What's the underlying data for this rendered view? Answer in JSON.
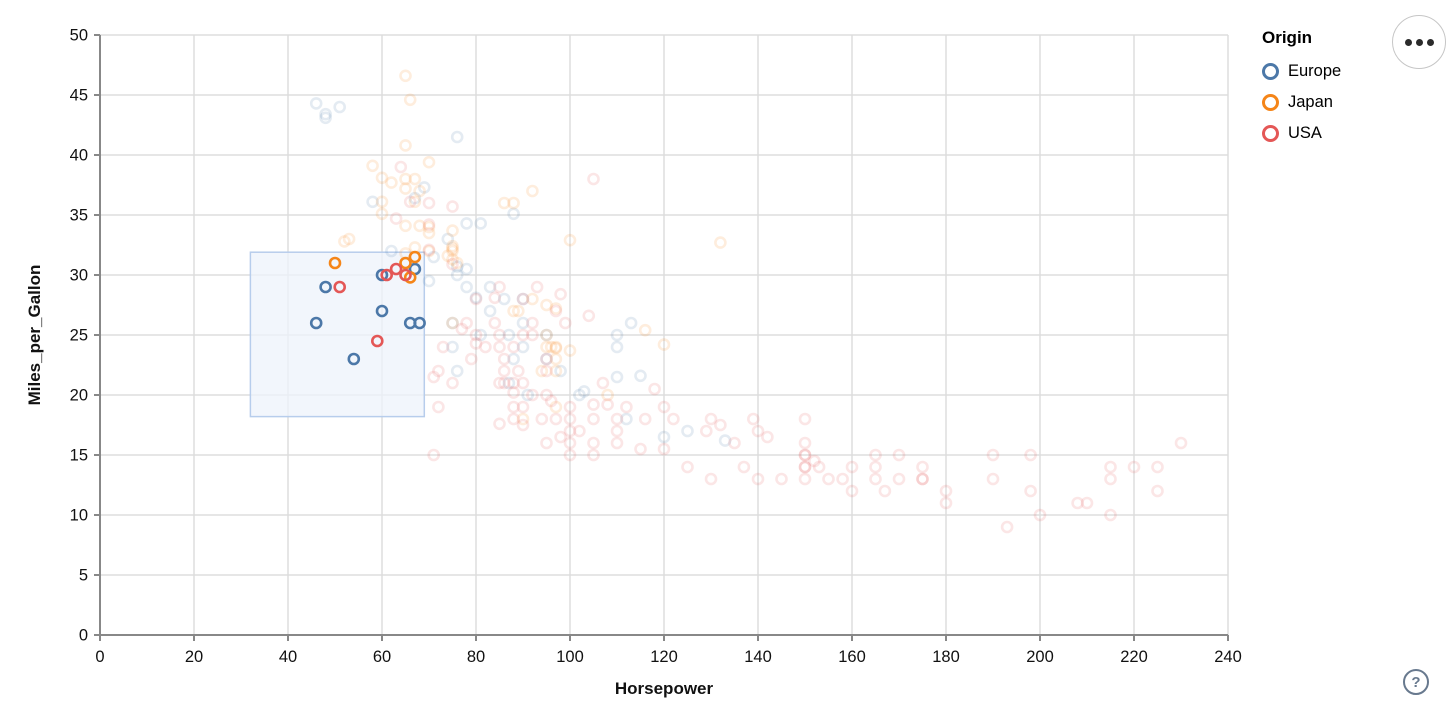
{
  "legend": {
    "title": "Origin",
    "items": [
      {
        "label": "Europe",
        "color": "#4c78a8"
      },
      {
        "label": "Japan",
        "color": "#f58518"
      },
      {
        "label": "USA",
        "color": "#e45756"
      }
    ]
  },
  "controls": {
    "menu_icon": "ellipsis-icon",
    "help_label": "?"
  },
  "chart_data": {
    "type": "scatter",
    "title": "",
    "xlabel": "Horsepower",
    "ylabel": "Miles_per_Gallon",
    "xlim": [
      0,
      240
    ],
    "ylim": [
      0,
      50
    ],
    "x_ticks": [
      0,
      20,
      40,
      60,
      80,
      100,
      120,
      140,
      160,
      180,
      200,
      220,
      240
    ],
    "y_ticks": [
      0,
      5,
      10,
      15,
      20,
      25,
      30,
      35,
      40,
      45,
      50
    ],
    "grid": true,
    "legend_title": "Origin",
    "legend_position": "top-right",
    "point_style": "open-circle",
    "unselected_opacity": 0.15,
    "brush": {
      "x": [
        32,
        69
      ],
      "y": [
        18.2,
        31.9
      ],
      "fill": "#eef3fb",
      "fill_opacity": 0.75,
      "stroke": "#b7cdec"
    },
    "series": [
      {
        "name": "Europe",
        "color": "#4c78a8",
        "selected": [
          [
            46,
            26
          ],
          [
            48,
            29
          ],
          [
            54,
            23
          ],
          [
            60,
            27
          ],
          [
            60,
            30
          ],
          [
            66,
            26
          ],
          [
            68,
            26
          ],
          [
            67,
            30.5
          ]
        ],
        "points": [
          [
            46,
            44.3
          ],
          [
            48,
            43.4
          ],
          [
            48,
            43.1
          ],
          [
            51,
            44
          ],
          [
            76,
            41.5
          ],
          [
            69,
            37.3
          ],
          [
            67,
            36.4
          ],
          [
            58,
            36.1
          ],
          [
            78,
            34.3
          ],
          [
            88,
            35.1
          ],
          [
            74,
            33
          ],
          [
            81,
            34.3
          ],
          [
            62,
            32
          ],
          [
            71,
            31.5
          ],
          [
            76,
            30.7
          ],
          [
            80,
            28.1
          ],
          [
            78,
            30.5
          ],
          [
            70,
            29.5
          ],
          [
            78,
            29
          ],
          [
            83,
            29
          ],
          [
            86,
            28
          ],
          [
            81,
            25
          ],
          [
            83,
            27
          ],
          [
            75,
            24
          ],
          [
            75,
            26
          ],
          [
            76,
            30
          ],
          [
            90,
            28
          ],
          [
            87,
            25
          ],
          [
            90,
            24
          ],
          [
            95,
            25
          ],
          [
            113,
            26
          ],
          [
            90,
            26
          ],
          [
            91,
            20
          ],
          [
            112,
            18
          ],
          [
            76,
            22
          ],
          [
            87,
            21
          ],
          [
            95,
            23
          ],
          [
            88,
            23
          ],
          [
            98,
            22
          ],
          [
            110,
            25
          ],
          [
            110,
            24
          ],
          [
            110,
            21.5
          ],
          [
            103,
            20.3
          ],
          [
            102,
            20
          ],
          [
            115,
            21.6
          ],
          [
            125,
            17
          ],
          [
            133,
            16.2
          ],
          [
            120,
            16.5
          ]
        ]
      },
      {
        "name": "Japan",
        "color": "#f58518",
        "selected": [
          [
            50,
            31
          ],
          [
            65,
            31
          ],
          [
            67,
            31.5
          ],
          [
            66,
            29.8
          ]
        ],
        "points": [
          [
            65,
            46.6
          ],
          [
            66,
            44.6
          ],
          [
            65,
            40.8
          ],
          [
            70,
            39.4
          ],
          [
            58,
            39.1
          ],
          [
            60,
            38.1
          ],
          [
            65,
            37.2
          ],
          [
            62,
            37.7
          ],
          [
            92,
            37
          ],
          [
            68,
            37
          ],
          [
            67,
            38
          ],
          [
            60,
            36.1
          ],
          [
            67,
            36.1
          ],
          [
            88,
            36
          ],
          [
            86,
            36
          ],
          [
            60,
            35.1
          ],
          [
            75,
            32.2
          ],
          [
            75,
            32.4
          ],
          [
            65,
            34.1
          ],
          [
            68,
            34.1
          ],
          [
            75,
            33.7
          ],
          [
            70,
            33.5
          ],
          [
            53,
            33
          ],
          [
            100,
            32.9
          ],
          [
            132,
            32.7
          ],
          [
            52,
            32.8
          ],
          [
            70,
            32
          ],
          [
            75,
            32
          ],
          [
            67,
            32.3
          ],
          [
            74,
            31.6
          ],
          [
            65,
            31.8
          ],
          [
            75,
            31.3
          ],
          [
            70,
            34
          ],
          [
            65,
            38
          ],
          [
            76,
            31
          ],
          [
            95,
            24
          ],
          [
            88,
            27
          ],
          [
            89,
            27
          ],
          [
            95,
            25
          ],
          [
            96,
            24
          ],
          [
            92,
            28
          ],
          [
            97,
            23
          ],
          [
            94,
            22
          ],
          [
            97,
            24
          ],
          [
            75,
            26
          ],
          [
            95,
            27.5
          ],
          [
            97,
            27.2
          ],
          [
            97,
            23.9
          ],
          [
            100,
            23.7
          ],
          [
            116,
            25.4
          ],
          [
            120,
            24.2
          ],
          [
            97,
            19
          ],
          [
            90,
            18
          ],
          [
            108,
            20
          ],
          [
            97,
            22
          ]
        ]
      },
      {
        "name": "USA",
        "color": "#e45756",
        "selected": [
          [
            51,
            29
          ],
          [
            59,
            24.5
          ],
          [
            61,
            30
          ],
          [
            63,
            30.5
          ],
          [
            65,
            30
          ]
        ],
        "points": [
          [
            64,
            39
          ],
          [
            66,
            36.1
          ],
          [
            70,
            36
          ],
          [
            63,
            34.7
          ],
          [
            75,
            35.7
          ],
          [
            105,
            38
          ],
          [
            70,
            34.2
          ],
          [
            75,
            30.9
          ],
          [
            70,
            32.1
          ],
          [
            85,
            29
          ],
          [
            90,
            28
          ],
          [
            93,
            29
          ],
          [
            98,
            28.4
          ],
          [
            84,
            28.1
          ],
          [
            95,
            22
          ],
          [
            95,
            23
          ],
          [
            95,
            20
          ],
          [
            85,
            21
          ],
          [
            90,
            21
          ],
          [
            88,
            21
          ],
          [
            86,
            23
          ],
          [
            80,
            25
          ],
          [
            86,
            21
          ],
          [
            75,
            21
          ],
          [
            72,
            19
          ],
          [
            72,
            22
          ],
          [
            107,
            21
          ],
          [
            86,
            22
          ],
          [
            80,
            28
          ],
          [
            90,
            25
          ],
          [
            92,
            26
          ],
          [
            84,
            26
          ],
          [
            88,
            24
          ],
          [
            85,
            24
          ],
          [
            97,
            27
          ],
          [
            78,
            26
          ],
          [
            82,
            24
          ],
          [
            89,
            22
          ],
          [
            92,
            25
          ],
          [
            85,
            25
          ],
          [
            80,
            24.3
          ],
          [
            77,
            25.5
          ],
          [
            73,
            24
          ],
          [
            79,
            23
          ],
          [
            99,
            26
          ],
          [
            104,
            26.6
          ],
          [
            71,
            21.5
          ],
          [
            97,
            18
          ],
          [
            105,
            16
          ],
          [
            88,
            19
          ],
          [
            110,
            18
          ],
          [
            100,
            19
          ],
          [
            88,
            18
          ],
          [
            105,
            18
          ],
          [
            100,
            16
          ],
          [
            100,
            18
          ],
          [
            88,
            20.2
          ],
          [
            90,
            19
          ],
          [
            95,
            16
          ],
          [
            100,
            15
          ],
          [
            105,
            15
          ],
          [
            110,
            16
          ],
          [
            90,
            17.5
          ],
          [
            85,
            17.6
          ],
          [
            92,
            20
          ],
          [
            94,
            18
          ],
          [
            96,
            19.5
          ],
          [
            98,
            16.5
          ],
          [
            102,
            17
          ],
          [
            108,
            19.2
          ],
          [
            112,
            19
          ],
          [
            115,
            15.5
          ],
          [
            116,
            18
          ],
          [
            118,
            20.5
          ],
          [
            110,
            17
          ],
          [
            105,
            19.2
          ],
          [
            100,
            17
          ],
          [
            71,
            15
          ],
          [
            120,
            15.5
          ],
          [
            129,
            17
          ],
          [
            125,
            14
          ],
          [
            130,
            13
          ],
          [
            132,
            17.5
          ],
          [
            135,
            16
          ],
          [
            122,
            18
          ],
          [
            120,
            19
          ],
          [
            130,
            18
          ],
          [
            140,
            17
          ],
          [
            137,
            14
          ],
          [
            139,
            18
          ],
          [
            140,
            13
          ],
          [
            145,
            13
          ],
          [
            142,
            16.5
          ],
          [
            150,
            18
          ],
          [
            150,
            16
          ],
          [
            150,
            15
          ],
          [
            150,
            15
          ],
          [
            150,
            14
          ],
          [
            150,
            14
          ],
          [
            150,
            13
          ],
          [
            152,
            14.5
          ],
          [
            153,
            14
          ],
          [
            155,
            13
          ],
          [
            158,
            13
          ],
          [
            160,
            14
          ],
          [
            160,
            12
          ],
          [
            165,
            15
          ],
          [
            165,
            14
          ],
          [
            165,
            13
          ],
          [
            167,
            12
          ],
          [
            170,
            15
          ],
          [
            170,
            13
          ],
          [
            175,
            14
          ],
          [
            175,
            13
          ],
          [
            175,
            13
          ],
          [
            180,
            12
          ],
          [
            180,
            11
          ],
          [
            190,
            15
          ],
          [
            190,
            13
          ],
          [
            193,
            9
          ],
          [
            198,
            15
          ],
          [
            198,
            12
          ],
          [
            200,
            10
          ],
          [
            208,
            11
          ],
          [
            210,
            11
          ],
          [
            215,
            14
          ],
          [
            215,
            13
          ],
          [
            215,
            10
          ],
          [
            220,
            14
          ],
          [
            225,
            14
          ],
          [
            225,
            12
          ],
          [
            230,
            16
          ]
        ]
      }
    ]
  }
}
